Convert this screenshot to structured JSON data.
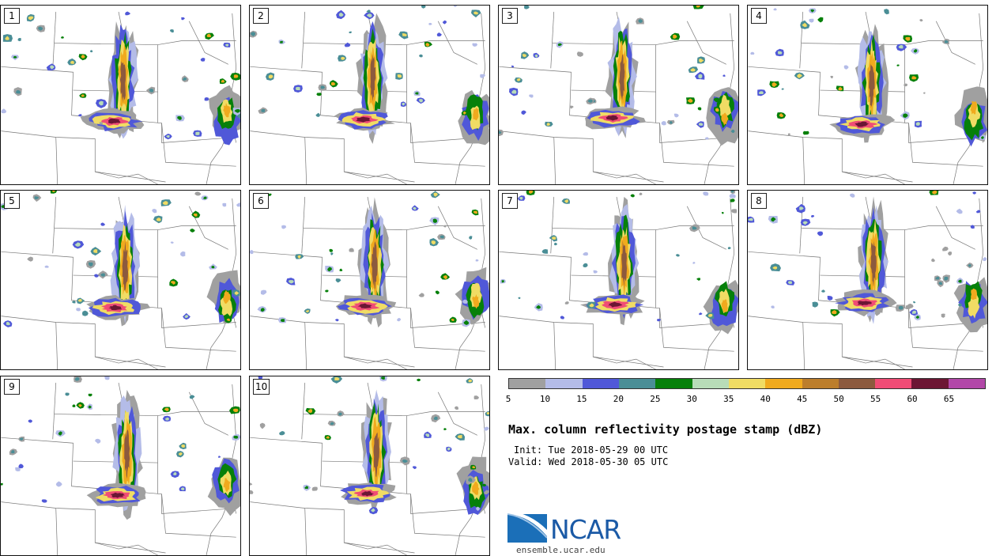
{
  "panels": [
    {
      "label": "1"
    },
    {
      "label": "2"
    },
    {
      "label": "3"
    },
    {
      "label": "4"
    },
    {
      "label": "5"
    },
    {
      "label": "6"
    },
    {
      "label": "7"
    },
    {
      "label": "8"
    },
    {
      "label": "9"
    },
    {
      "label": "10"
    }
  ],
  "colorbar": {
    "colors": [
      "#a0a0a0",
      "#b4bce8",
      "#5058d8",
      "#4a8e96",
      "#06800a",
      "#b8dcb8",
      "#f0dc64",
      "#f0aa1e",
      "#bc7e2c",
      "#8c5a3e",
      "#f04c76",
      "#6c1634",
      "#b248a8"
    ],
    "ticks": [
      "5",
      "10",
      "15",
      "20",
      "25",
      "30",
      "35",
      "40",
      "45",
      "50",
      "55",
      "60",
      "65"
    ]
  },
  "title": "Max. column reflectivity postage stamp (dBZ)",
  "init": "Init: Tue 2018-05-29 00 UTC",
  "valid": "Valid: Wed 2018-05-30 05 UTC",
  "logo": {
    "text": "NCAR",
    "url": "ensemble.ucar.edu"
  }
}
